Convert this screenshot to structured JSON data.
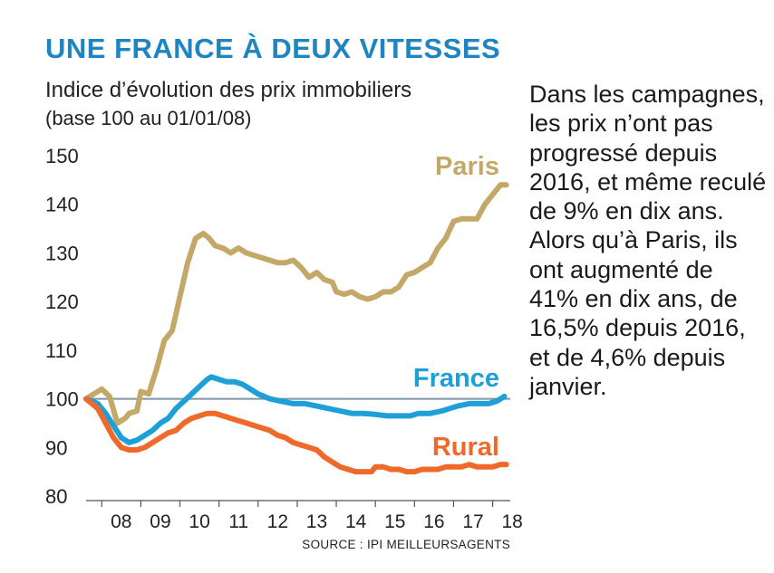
{
  "header": {
    "title": "UNE FRANCE À DEUX VITESSES",
    "subtitle": "Indice d’évolution des prix immobiliers",
    "base_note": "(base 100 au 01/01/08)"
  },
  "note": {
    "lines": [
      "Dans les campagnes, les prix n’ont pas progressé depuis 2016, et même reculé de 9% en dix ans.",
      "Alors qu’à Paris, ils ont augmenté de 41% en dix ans, de 16,5% depuis 2016, et de 4,6% depuis janvier."
    ]
  },
  "chart_data": {
    "type": "line",
    "title": "UNE FRANCE À DEUX VITESSES",
    "xlabel": "",
    "ylabel": "",
    "ylim": [
      80,
      150
    ],
    "xlim": [
      2007.6,
      2018.45
    ],
    "y_ticks": [
      "150",
      "140",
      "130",
      "120",
      "110",
      "100",
      "90",
      "80"
    ],
    "x_ticks": [
      "08",
      "09",
      "10",
      "11",
      "12",
      "13",
      "14",
      "15",
      "16",
      "17",
      "18"
    ],
    "reference_line": 100,
    "grid": false,
    "source": "SOURCE : IPI MEILLEURSAGENTS",
    "series": [
      {
        "name": "Paris",
        "color": "#c4a868",
        "x": [
          2007.6,
          2007.9,
          2008.0,
          2008.2,
          2008.4,
          2008.6,
          2008.7,
          2008.9,
          2009.0,
          2009.2,
          2009.4,
          2009.6,
          2009.8,
          2010.0,
          2010.2,
          2010.4,
          2010.6,
          2010.75,
          2010.9,
          2011.1,
          2011.3,
          2011.5,
          2011.7,
          2011.9,
          2012.1,
          2012.3,
          2012.5,
          2012.7,
          2012.9,
          2013.1,
          2013.3,
          2013.5,
          2013.7,
          2013.9,
          2014.0,
          2014.2,
          2014.4,
          2014.6,
          2014.8,
          2015.0,
          2015.2,
          2015.4,
          2015.6,
          2015.8,
          2016.0,
          2016.2,
          2016.4,
          2016.6,
          2016.8,
          2017.0,
          2017.2,
          2017.4,
          2017.6,
          2017.8,
          2018.0,
          2018.2,
          2018.35
        ],
        "values": [
          100,
          101.5,
          102,
          100.5,
          95,
          96,
          97,
          97.5,
          101.5,
          101,
          106,
          112,
          114,
          121,
          128,
          133,
          134,
          133,
          131.5,
          131,
          130,
          131,
          130,
          129.5,
          129,
          128.5,
          128,
          128,
          128.5,
          127,
          125,
          126,
          124.5,
          124,
          122,
          121.5,
          122,
          121,
          120.5,
          121,
          122,
          122,
          123,
          125.5,
          126,
          127,
          128,
          131,
          133,
          136.5,
          137,
          137,
          137,
          140,
          142,
          144,
          144
        ]
      },
      {
        "name": "France",
        "color": "#1f9fd8",
        "x": [
          2007.6,
          2007.9,
          2008.1,
          2008.3,
          2008.5,
          2008.7,
          2008.9,
          2009.1,
          2009.3,
          2009.5,
          2009.7,
          2009.9,
          2010.1,
          2010.3,
          2010.5,
          2010.7,
          2010.8,
          2011.0,
          2011.2,
          2011.4,
          2011.6,
          2011.8,
          2012.0,
          2012.3,
          2012.6,
          2012.9,
          2013.2,
          2013.5,
          2013.8,
          2014.1,
          2014.4,
          2014.7,
          2015.0,
          2015.3,
          2015.6,
          2015.9,
          2016.1,
          2016.4,
          2016.7,
          2016.9,
          2017.1,
          2017.4,
          2017.7,
          2017.9,
          2018.1,
          2018.3
        ],
        "values": [
          100,
          99,
          97,
          94.5,
          92,
          91,
          91.5,
          92.5,
          93.5,
          95,
          96,
          98,
          99.5,
          101,
          102.5,
          104,
          104.5,
          104,
          103.5,
          103.5,
          103,
          102,
          101,
          100,
          99.5,
          99,
          99,
          98.5,
          98,
          97.5,
          97,
          97,
          96.8,
          96.5,
          96.5,
          96.5,
          97,
          97,
          97.5,
          98,
          98.5,
          99,
          99,
          99,
          99.5,
          100.5
        ]
      },
      {
        "name": "Rural",
        "color": "#ef6a2a",
        "x": [
          2007.6,
          2007.9,
          2008.1,
          2008.3,
          2008.5,
          2008.7,
          2008.9,
          2009.1,
          2009.3,
          2009.5,
          2009.7,
          2009.9,
          2010.1,
          2010.3,
          2010.5,
          2010.7,
          2010.9,
          2011.1,
          2011.3,
          2011.5,
          2011.7,
          2011.9,
          2012.1,
          2012.3,
          2012.5,
          2012.7,
          2012.9,
          2013.1,
          2013.3,
          2013.5,
          2013.7,
          2013.9,
          2014.1,
          2014.3,
          2014.5,
          2014.7,
          2014.9,
          2015.0,
          2015.2,
          2015.4,
          2015.6,
          2015.8,
          2016.0,
          2016.2,
          2016.4,
          2016.6,
          2016.8,
          2017.0,
          2017.2,
          2017.4,
          2017.6,
          2017.8,
          2018.0,
          2018.2,
          2018.35
        ],
        "values": [
          100,
          98,
          95,
          92,
          90,
          89.5,
          89.5,
          90,
          91,
          92,
          93,
          93.5,
          95,
          96,
          96.5,
          97,
          97,
          96.5,
          96,
          95.5,
          95,
          94.5,
          94,
          93.5,
          92.5,
          92,
          91,
          90.5,
          90,
          89.5,
          88,
          87,
          86,
          85.5,
          85,
          85,
          85,
          86,
          86,
          85.5,
          85.5,
          85,
          85,
          85.5,
          85.5,
          85.5,
          86,
          86,
          86,
          86.5,
          86,
          86,
          86,
          86.5,
          86.5
        ]
      }
    ]
  }
}
